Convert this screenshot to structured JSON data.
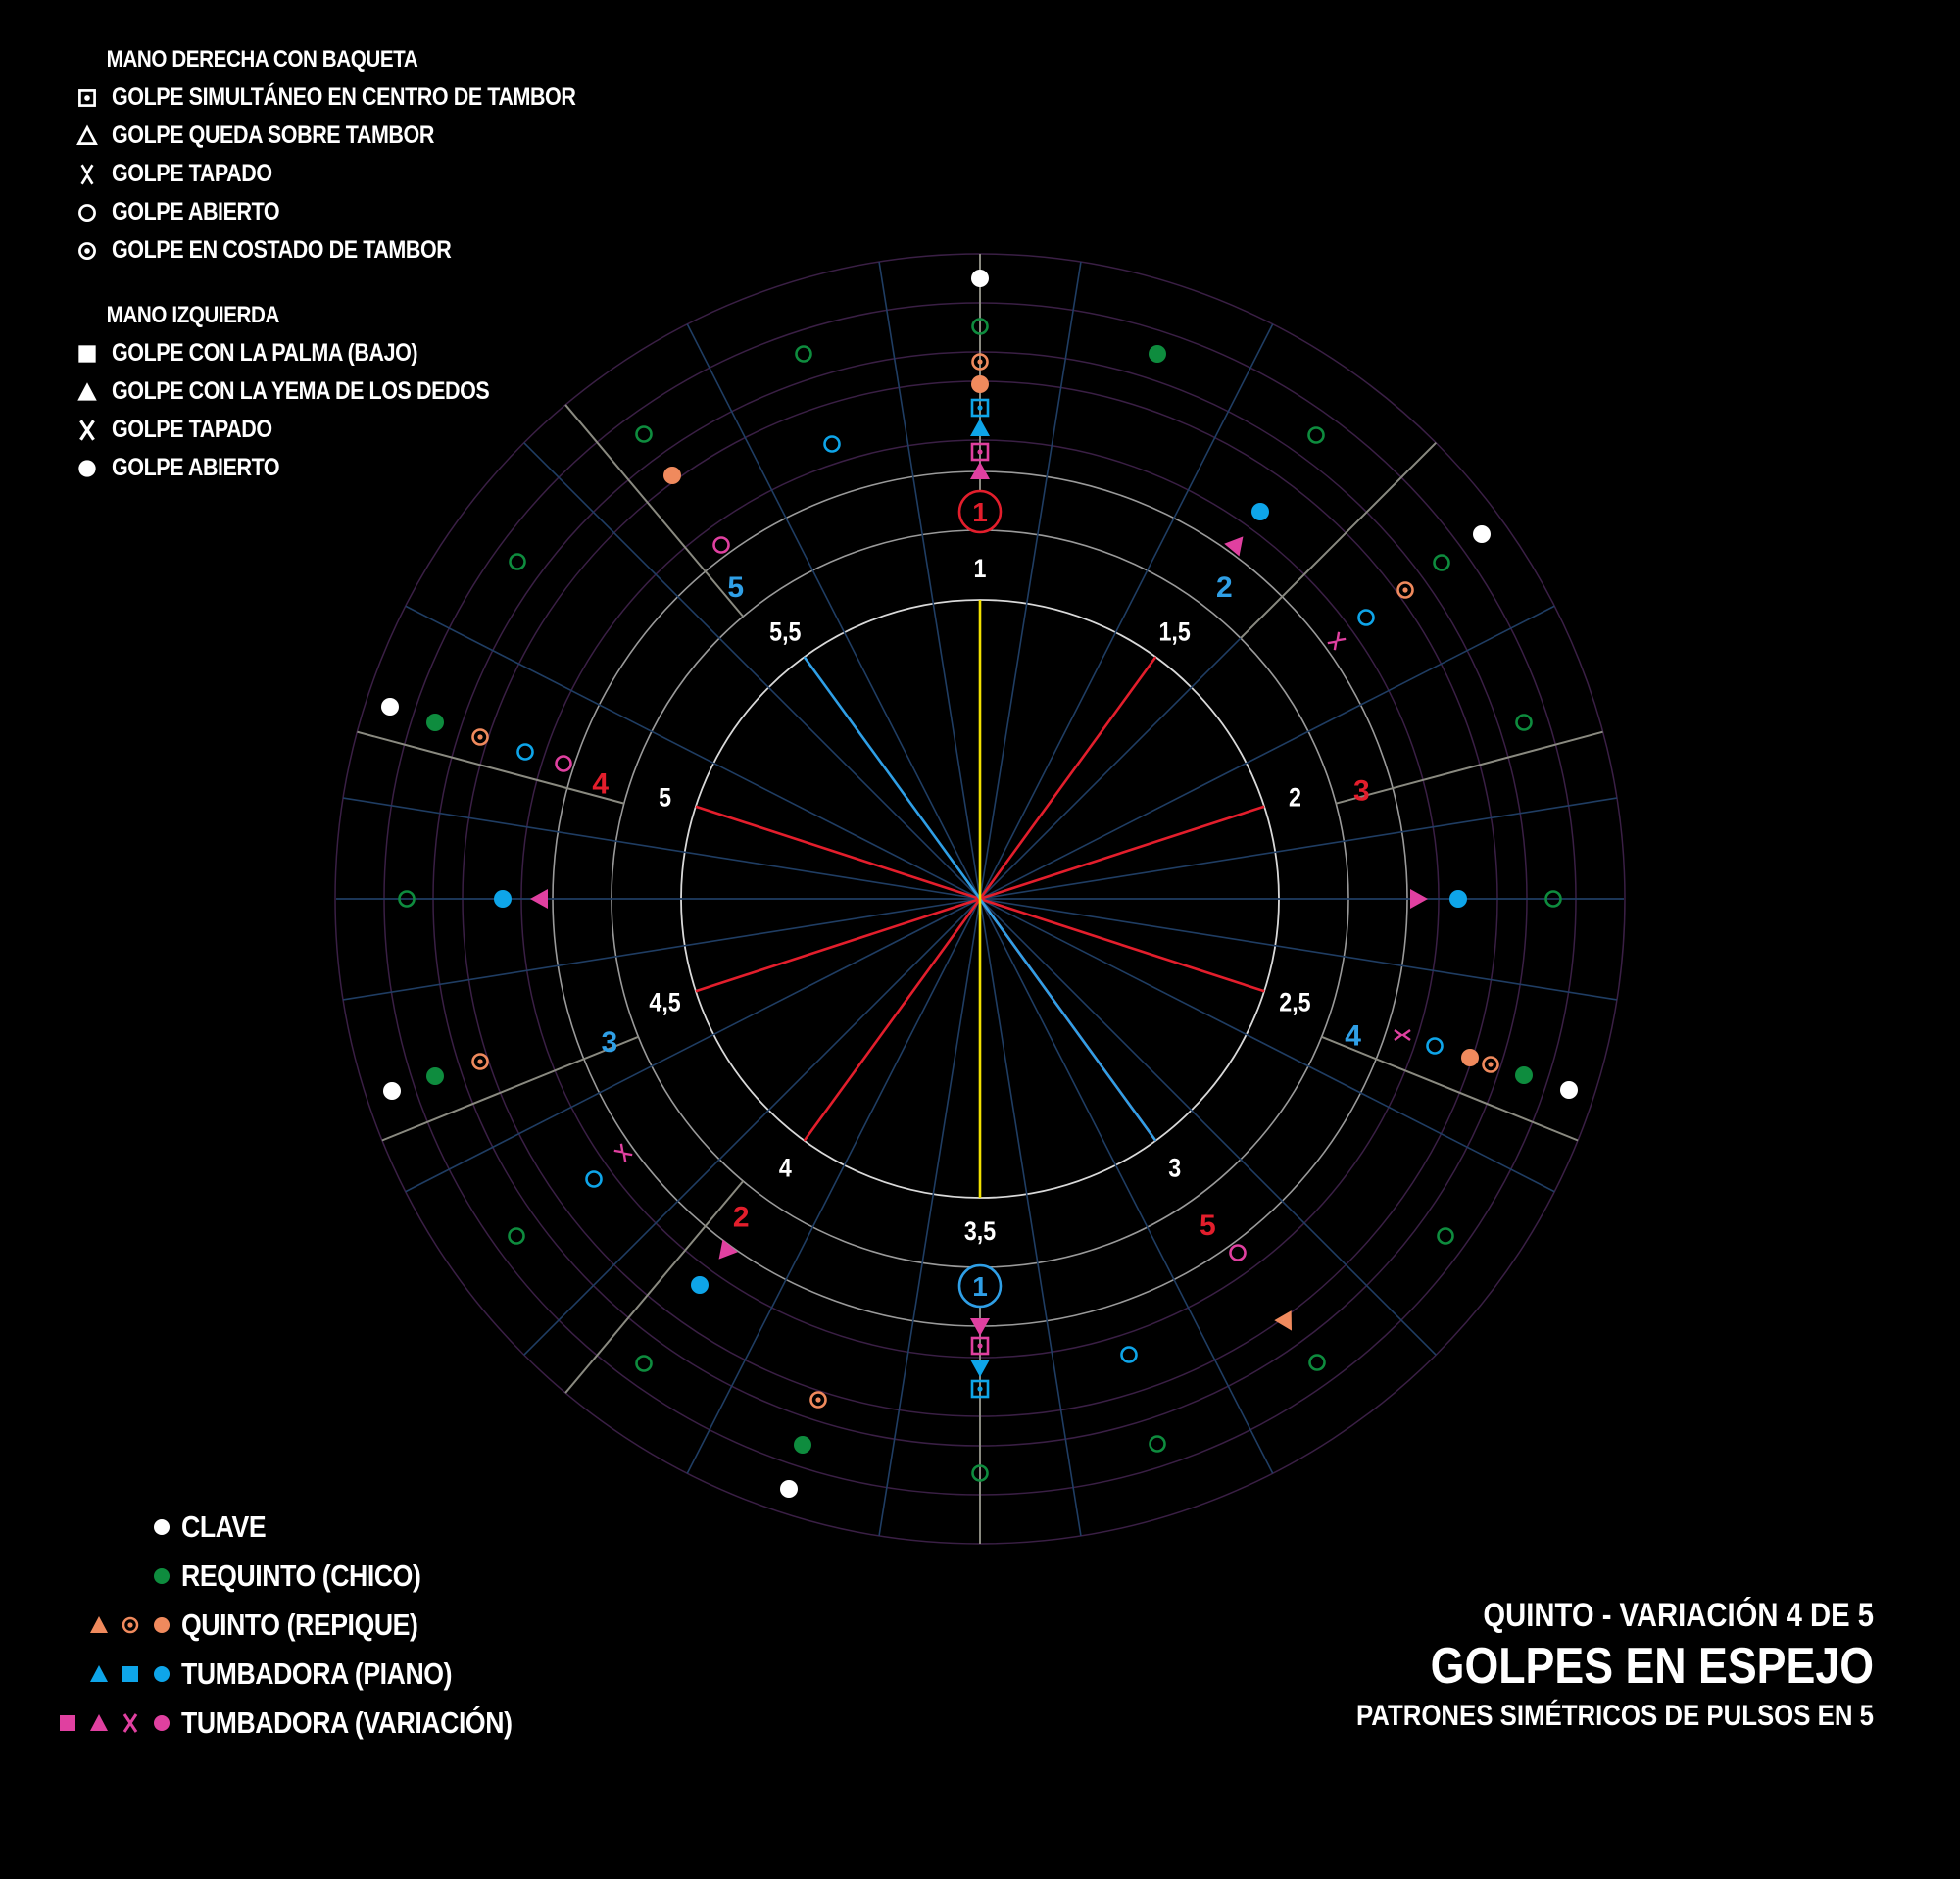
{
  "colors": {
    "background": "#000000",
    "clave": "#ffffff",
    "requinto": "#0e8c3e",
    "quinto": "#f08a5d",
    "tumbadora": "#0ea5e9",
    "variacion": "#e040a0",
    "pulse_red": "#e31e2c",
    "pulse_blue": "#2f9fe6",
    "center_yellow": "#f2e200",
    "grid_blue": "#1f3d63",
    "grid_purple": "#3a1f45"
  },
  "legend_right_hand": {
    "heading": "MANO DERECHA CON BAQUETA",
    "items": [
      {
        "icon": "square-dot-icon",
        "label": "GOLPE SIMULTÁNEO EN CENTRO DE TAMBOR"
      },
      {
        "icon": "triangle-outline-icon",
        "label": "GOLPE QUEDA SOBRE TAMBOR"
      },
      {
        "icon": "tapado-outline-icon",
        "label": "GOLPE TAPADO"
      },
      {
        "icon": "circle-outline-icon",
        "label": "GOLPE ABIERTO"
      },
      {
        "icon": "circle-dot-icon",
        "label": "GOLPE EN COSTADO DE TAMBOR"
      }
    ]
  },
  "legend_left_hand": {
    "heading": "MANO IZQUIERDA",
    "items": [
      {
        "icon": "square-filled-icon",
        "label": "GOLPE CON LA PALMA (BAJO)"
      },
      {
        "icon": "triangle-filled-icon",
        "label": "GOLPE CON LA YEMA DE LOS DEDOS"
      },
      {
        "icon": "x-icon",
        "label": "GOLPE TAPADO"
      },
      {
        "icon": "circle-filled-icon",
        "label": "GOLPE ABIERTO"
      }
    ]
  },
  "instrument_legend": [
    {
      "label": "CLAVE",
      "icons": [
        {
          "shape": "circle-filled",
          "color": "#ffffff"
        }
      ]
    },
    {
      "label": "REQUINTO (CHICO)",
      "icons": [
        {
          "shape": "circle-filled",
          "color": "#0e8c3e"
        }
      ]
    },
    {
      "label": "QUINTO (REPIQUE)",
      "icons": [
        {
          "shape": "triangle-filled",
          "color": "#f08a5d"
        },
        {
          "shape": "circle-dot",
          "color": "#f08a5d"
        },
        {
          "shape": "circle-filled",
          "color": "#f08a5d"
        }
      ]
    },
    {
      "label": "TUMBADORA (PIANO)",
      "icons": [
        {
          "shape": "triangle-filled",
          "color": "#0ea5e9"
        },
        {
          "shape": "square-filled",
          "color": "#0ea5e9"
        },
        {
          "shape": "circle-filled",
          "color": "#0ea5e9"
        }
      ]
    },
    {
      "label": "TUMBADORA (VARIACIÓN)",
      "icons": [
        {
          "shape": "square-filled",
          "color": "#e040a0"
        },
        {
          "shape": "triangle-filled",
          "color": "#e040a0"
        },
        {
          "shape": "x",
          "color": "#e040a0"
        },
        {
          "shape": "circle-filled",
          "color": "#e040a0"
        }
      ]
    }
  ],
  "title": {
    "line1": "QUINTO - VARIACIÓN 4 DE 5",
    "line2": "GOLPES EN ESPEJO",
    "line3": "PATRONES SIMÉTRICOS DE PULSOS EN 5"
  },
  "wheel": {
    "inner_pulse_labels": [
      "1",
      "1,5",
      "2",
      "2,5",
      "3",
      "3,5",
      "4",
      "4,5",
      "5",
      "5,5"
    ],
    "outer_labels": [
      {
        "text": "2",
        "color": "#2f9fe6"
      },
      {
        "text": "3",
        "color": "#e31e2c"
      },
      {
        "text": "4",
        "color": "#2f9fe6"
      },
      {
        "text": "5",
        "color": "#e31e2c"
      },
      {
        "text": "2",
        "color": "#e31e2c"
      },
      {
        "text": "3",
        "color": "#2f9fe6"
      },
      {
        "text": "4",
        "color": "#e31e2c"
      },
      {
        "text": "5",
        "color": "#2f9fe6"
      }
    ],
    "top_marker": {
      "text": "1",
      "color": "#e31e2c"
    },
    "bottom_marker": {
      "text": "1",
      "color": "#2f9fe6"
    }
  }
}
